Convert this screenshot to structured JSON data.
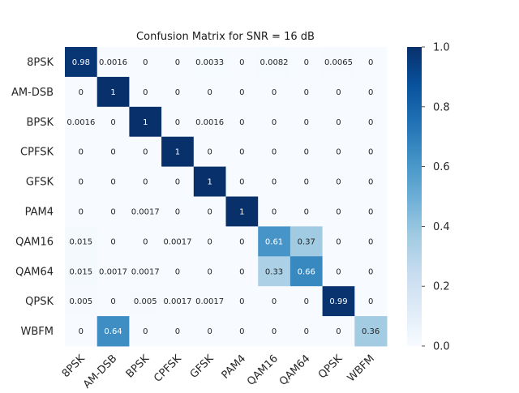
{
  "chart_data": {
    "type": "heatmap",
    "title": "Confusion Matrix for SNR = 16 dB",
    "xlabel": "",
    "ylabel": "",
    "row_labels": [
      "8PSK",
      "AM-DSB",
      "BPSK",
      "CPFSK",
      "GFSK",
      "PAM4",
      "QAM16",
      "QAM64",
      "QPSK",
      "WBFM"
    ],
    "col_labels": [
      "8PSK",
      "AM-DSB",
      "BPSK",
      "CPFSK",
      "GFSK",
      "PAM4",
      "QAM16",
      "QAM64",
      "QPSK",
      "WBFM"
    ],
    "values": [
      [
        0.98,
        0.0016,
        0,
        0,
        0.0033,
        0,
        0.0082,
        0,
        0.0065,
        0
      ],
      [
        0,
        1,
        0,
        0,
        0,
        0,
        0,
        0,
        0,
        0
      ],
      [
        0.0016,
        0,
        1,
        0,
        0.0016,
        0,
        0,
        0,
        0,
        0
      ],
      [
        0,
        0,
        0,
        1,
        0,
        0,
        0,
        0,
        0,
        0
      ],
      [
        0,
        0,
        0,
        0,
        1,
        0,
        0,
        0,
        0,
        0
      ],
      [
        0,
        0,
        0.0017,
        0,
        0,
        1,
        0,
        0,
        0,
        0
      ],
      [
        0.015,
        0,
        0,
        0.0017,
        0,
        0,
        0.61,
        0.37,
        0,
        0
      ],
      [
        0.015,
        0.0017,
        0.0017,
        0,
        0,
        0,
        0.33,
        0.66,
        0,
        0
      ],
      [
        0.005,
        0,
        0.005,
        0.0017,
        0.0017,
        0,
        0,
        0,
        0.99,
        0
      ],
      [
        0,
        0.64,
        0,
        0,
        0,
        0,
        0,
        0,
        0,
        0.36
      ]
    ],
    "colorbar": {
      "min": 0,
      "max": 1,
      "ticks": [
        "0.0",
        "0.2",
        "0.4",
        "0.6",
        "0.8",
        "1.0"
      ],
      "colormap": "Blues"
    },
    "grid": false
  }
}
